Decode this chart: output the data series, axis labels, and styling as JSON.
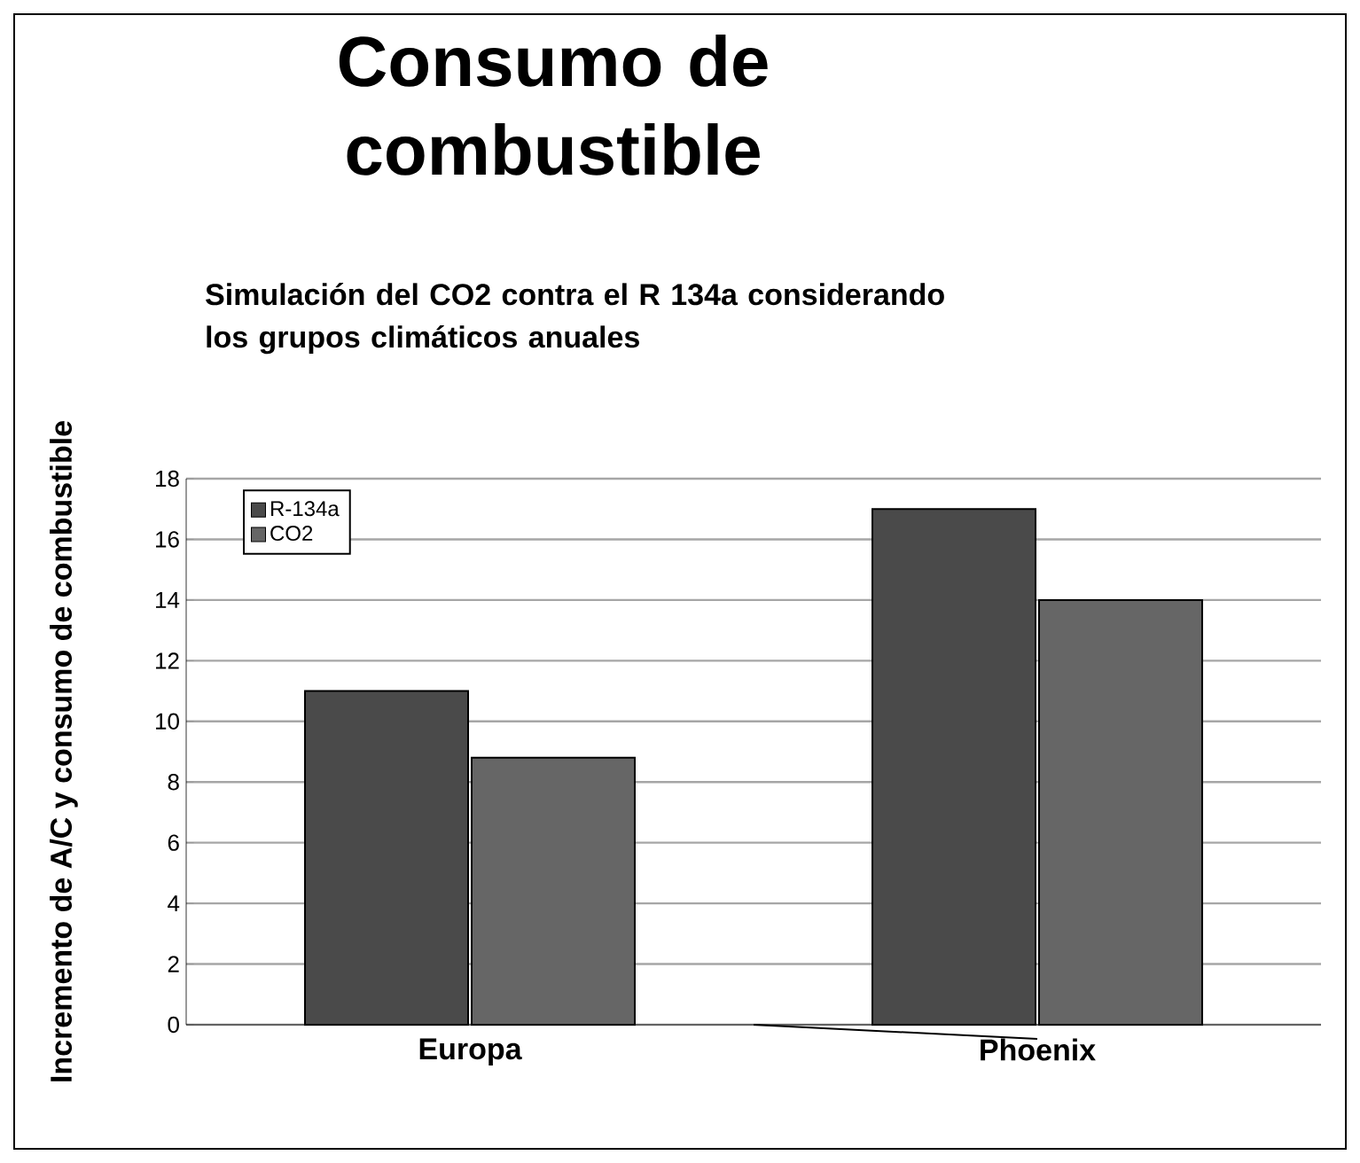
{
  "chart_data": {
    "type": "bar",
    "title": "Consumo de combustible",
    "subtitle": "Simulación del CO2 contra el R 134a considerando los grupos climáticos anuales",
    "ylabel": "Incremento de A/C y consumo de combustible",
    "categories": [
      "Europa",
      "Phoenix"
    ],
    "series": [
      {
        "name": "R-134a",
        "color": "#4a4a4a",
        "values": [
          11,
          17
        ]
      },
      {
        "name": "CO2",
        "color": "#666666",
        "values": [
          8.8,
          14
        ]
      }
    ],
    "ylim": [
      0,
      18
    ],
    "yticks": [
      0,
      2,
      4,
      6,
      8,
      10,
      12,
      14,
      16,
      18
    ],
    "grid": "y",
    "legend": "top left"
  }
}
